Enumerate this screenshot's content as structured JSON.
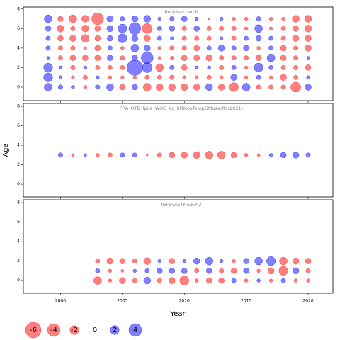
{
  "chart_data": [
    {
      "type": "bubble",
      "title": "Residual catch",
      "x": [
        1999,
        2000,
        2001,
        2002,
        2003,
        2004,
        2005,
        2006,
        2007,
        2008,
        2009,
        2010,
        2011,
        2012,
        2013,
        2014,
        2015,
        2016,
        2017,
        2018,
        2019,
        2020
      ],
      "ages": [
        0,
        1,
        2,
        3,
        4,
        5,
        6,
        7
      ],
      "values": [
        [
          1.5,
          0.5,
          0.3,
          -0.3,
          0.5,
          1.2,
          -0.8,
          0.8,
          -1.5,
          -1.2,
          -1.2,
          -1.2,
          -1.0,
          1.2,
          -1.0,
          -2.0,
          1.5,
          -0.5,
          -0.5,
          -0.5,
          -2.5,
          1.0
        ],
        [
          2.0,
          0.3,
          -0.3,
          -0.5,
          0.3,
          -0.3,
          -0.3,
          -0.3,
          -0.5,
          -0.5,
          -0.5,
          -0.3,
          -0.3,
          -0.5,
          -0.3,
          1.0,
          -0.3,
          0.5,
          -0.3,
          -1.0,
          -0.5,
          0.3
        ],
        [
          2.0,
          0.3,
          -0.5,
          0.3,
          -0.5,
          -0.5,
          -0.5,
          6.0,
          2.5,
          -1.5,
          0.5,
          -0.8,
          0.3,
          0.3,
          -0.5,
          0.5,
          -0.3,
          2.0,
          0.5,
          -0.5,
          -0.5,
          -0.8
        ],
        [
          0.2,
          -0.5,
          -0.8,
          -0.8,
          -0.8,
          0.8,
          -0.5,
          0.8,
          3.5,
          -0.2,
          -0.3,
          -0.8,
          -0.8,
          -1.0,
          -0.5,
          -0.5,
          -0.5,
          -0.8,
          1.5,
          -0.8,
          -0.5,
          0.2
        ],
        [
          0.5,
          -0.5,
          -0.5,
          -0.2,
          -0.8,
          0.5,
          -0.3,
          1.5,
          1.0,
          -0.3,
          -0.5,
          -0.5,
          -0.8,
          0.5,
          1.0,
          0.5,
          0.8,
          -0.3,
          0.5,
          -0.8,
          -0.5,
          -1.0
        ],
        [
          0.5,
          -0.8,
          -1.0,
          -1.5,
          -0.8,
          0.8,
          2.0,
          1.0,
          -1.0,
          0.5,
          0.3,
          -0.5,
          -0.5,
          -0.5,
          0.3,
          -0.5,
          0.5,
          0.8,
          0.5,
          -0.5,
          -1.0,
          -1.0
        ],
        [
          0.8,
          -1.2,
          -0.5,
          -1.2,
          -0.8,
          1.0,
          2.0,
          3.5,
          -2.5,
          0.5,
          0.8,
          -0.5,
          0.8,
          -0.5,
          -0.5,
          -0.5,
          -0.3,
          1.5,
          -0.3,
          -0.5,
          -0.8,
          -1.2
        ],
        [
          1.5,
          -0.7,
          -1.5,
          -1.2,
          -3.5,
          1.0,
          0.5,
          1.0,
          1.2,
          0.3,
          0.5,
          0.8,
          0.3,
          -0.1,
          0.3,
          -0.3,
          -0.3,
          0.5,
          -0.3,
          -0.3,
          -1.2,
          -1.2
        ]
      ],
      "ylim": [
        -1.38,
        8.2
      ],
      "yticks": [
        0,
        2,
        4,
        6,
        8
      ]
    },
    {
      "type": "bubble",
      "title": "FRA_OTB_lpue_WHG_kg_h(NoteTempGMusedfor2021)",
      "x": [
        2000,
        2001,
        2002,
        2003,
        2004,
        2005,
        2006,
        2007,
        2008,
        2009,
        2010,
        2011,
        2012,
        2013,
        2014,
        2015,
        2016,
        2017,
        2018,
        2019,
        2020
      ],
      "ages": [
        3
      ],
      "values": [
        [
          0.5,
          -0.2,
          0.2,
          -0.3,
          -0.5,
          0.5,
          0.5,
          -0.1,
          -0.5,
          -0.8,
          -1.0,
          -1.2,
          -1.5,
          -1.5,
          -0.8,
          -0.3,
          -0.2,
          0.3,
          0.8,
          1.0,
          0.5
        ]
      ],
      "ylim": [
        -1.3,
        8.3
      ],
      "yticks": [
        0,
        2,
        4,
        6,
        8
      ]
    },
    {
      "type": "bubble",
      "title": "IGFSVASTNo/Km2",
      "x": [
        2003,
        2004,
        2005,
        2006,
        2007,
        2008,
        2009,
        2010,
        2011,
        2012,
        2013,
        2014,
        2015,
        2016,
        2017,
        2018,
        2019,
        2020
      ],
      "ages": [
        0,
        1,
        2
      ],
      "values": [
        [
          -1.5,
          -0.3,
          -1.0,
          -0.5,
          1.2,
          -0.5,
          -1.0,
          -2.0,
          -0.3,
          -0.8,
          -0.8,
          0.5,
          -0.3,
          0.3,
          -0.3,
          0.5,
          -0.3,
          -0.3
        ],
        [
          0.5,
          -0.3,
          -0.2,
          0.3,
          0.5,
          0.8,
          0.8,
          0.8,
          -0.5,
          0.8,
          -0.5,
          -0.8,
          0.8,
          -0.3,
          -1.0,
          -2.0,
          1.0,
          -0.5
        ],
        [
          -0.5,
          -1.0,
          -0.8,
          -0.5,
          -1.2,
          0.3,
          -0.8,
          0.3,
          1.0,
          1.5,
          0.3,
          -0.3,
          0.8,
          1.5,
          2.0,
          -1.5,
          -1.0,
          -0.8
        ]
      ],
      "ylim": [
        -1.3,
        8.3
      ],
      "yticks": [
        0,
        2,
        4,
        6,
        8
      ]
    }
  ],
  "shared": {
    "xlabel": "Year",
    "ylabel": "Age",
    "xlim": [
      1997,
      2022
    ],
    "xticks": [
      2000,
      2005,
      2010,
      2015,
      2020
    ],
    "negative_color": "#ff0000",
    "positive_color": "#0000ff",
    "legend": [
      -6,
      -4,
      -2,
      0,
      2,
      4
    ]
  }
}
